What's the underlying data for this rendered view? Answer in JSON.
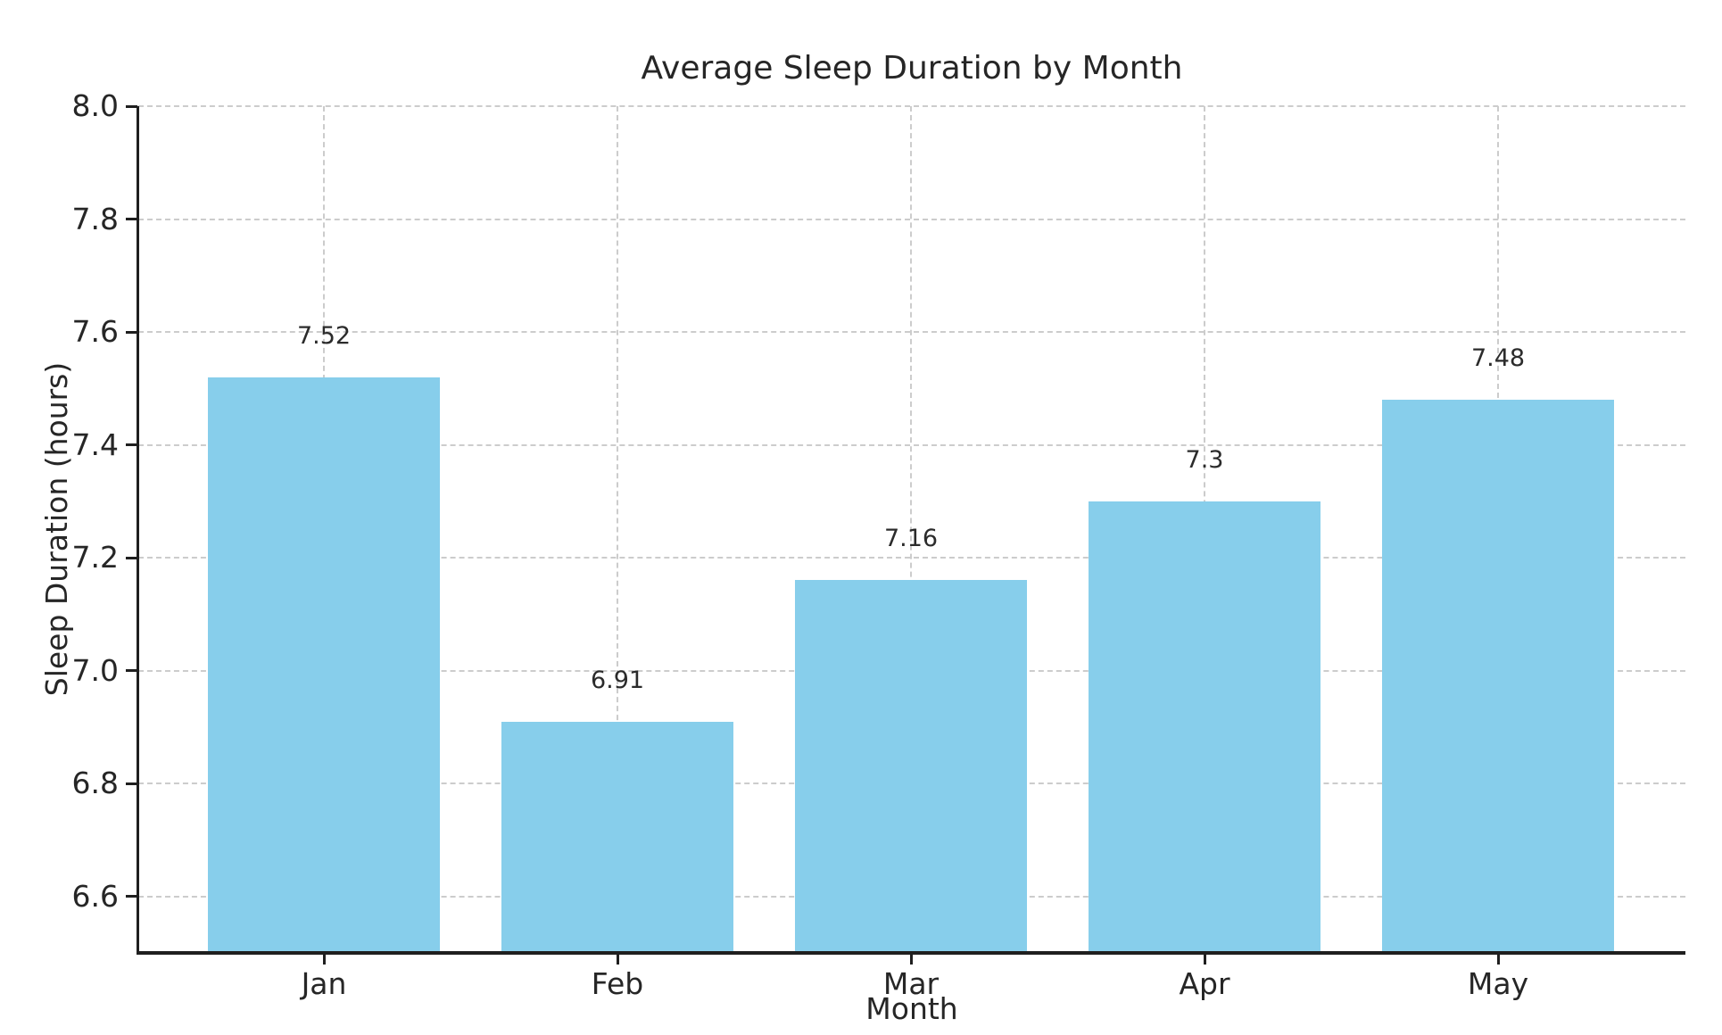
{
  "chart_data": {
    "type": "bar",
    "title": "Average Sleep Duration by Month",
    "xlabel": "Month",
    "ylabel": "Sleep Duration (hours)",
    "categories": [
      "Jan",
      "Feb",
      "Mar",
      "Apr",
      "May"
    ],
    "values": [
      7.52,
      6.91,
      7.16,
      7.3,
      7.48
    ],
    "bar_value_labels": [
      "7.52",
      "6.91",
      "7.16",
      "7.3",
      "7.48"
    ],
    "ylim": [
      6.5,
      8.0
    ],
    "yticks": [
      6.6,
      6.8,
      7.0,
      7.2,
      7.4,
      7.6,
      7.8,
      8.0
    ],
    "ytick_labels": [
      "6.6",
      "6.8",
      "7.0",
      "7.2",
      "7.4",
      "7.6",
      "7.8",
      "8.0"
    ],
    "grid": "dashed-both-axes",
    "axis_below_bars": true,
    "legend_position": "none",
    "colors": {
      "bar_fill": "#87CEEB",
      "text": "#262626",
      "grid": "#cccccc",
      "spine": "#1f1f1f",
      "background": "#ffffff"
    }
  }
}
